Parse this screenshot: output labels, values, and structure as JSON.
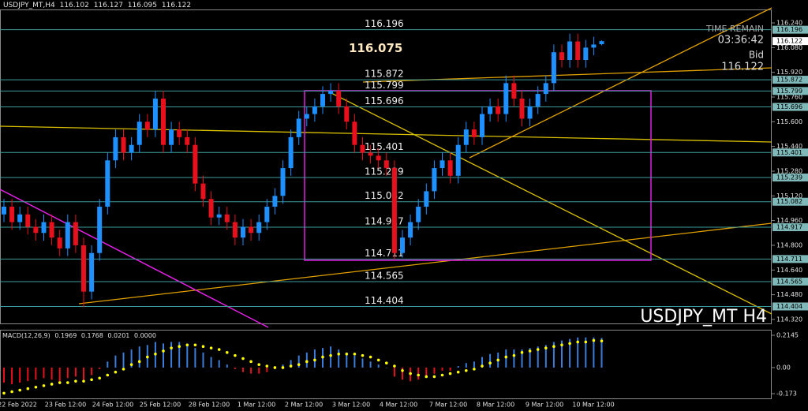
{
  "header": {
    "symbol": "USDJPY_MT,H4"
  },
  "chart_data": [
    {
      "type": "candlestick",
      "open": [
        115.0,
        115.05,
        114.95,
        115.0,
        114.92,
        114.88,
        114.95,
        114.85,
        114.78,
        114.95,
        114.8,
        114.5,
        114.75,
        115.05,
        115.35,
        115.5,
        115.4,
        115.45,
        115.6,
        115.55,
        115.75,
        115.45,
        115.55,
        115.5,
        115.45,
        115.2,
        115.1,
        114.98,
        115.0,
        114.95,
        114.85,
        114.92,
        114.88,
        114.95,
        115.05,
        115.12,
        115.3,
        115.5,
        115.62,
        115.65,
        115.7,
        115.78,
        115.8,
        115.7,
        115.6,
        115.45,
        115.4,
        115.38,
        115.35,
        115.3,
        114.75,
        114.85,
        114.95,
        115.05,
        115.15,
        115.3,
        115.35,
        115.25,
        115.45,
        115.55,
        115.5,
        115.65,
        115.7,
        115.65,
        115.85,
        115.75,
        115.62,
        115.7,
        115.78,
        115.85,
        116.05,
        116.0,
        116.12,
        116.0,
        116.08,
        116.102
      ],
      "high": [
        115.1,
        115.1,
        115.05,
        115.05,
        114.97,
        115.0,
        115.0,
        114.9,
        115.0,
        115.0,
        114.85,
        114.8,
        115.1,
        115.4,
        115.55,
        115.55,
        115.5,
        115.65,
        115.65,
        115.8,
        115.8,
        115.6,
        115.6,
        115.55,
        115.5,
        115.25,
        115.15,
        115.05,
        115.05,
        115.0,
        114.97,
        114.97,
        115.0,
        115.1,
        115.17,
        115.35,
        115.55,
        115.67,
        115.7,
        115.75,
        115.83,
        115.85,
        115.85,
        115.75,
        115.65,
        115.5,
        115.45,
        115.43,
        115.4,
        115.35,
        114.9,
        115.0,
        115.1,
        115.2,
        115.35,
        115.4,
        115.4,
        115.5,
        115.6,
        115.6,
        115.7,
        115.75,
        115.75,
        115.9,
        115.9,
        115.8,
        115.75,
        115.83,
        115.9,
        116.1,
        116.1,
        116.17,
        116.17,
        116.13,
        116.15,
        116.127
      ],
      "low": [
        114.95,
        114.9,
        114.9,
        114.87,
        114.83,
        114.83,
        114.8,
        114.73,
        114.73,
        114.75,
        114.4,
        114.45,
        114.7,
        115.0,
        115.3,
        115.35,
        115.35,
        115.4,
        115.5,
        115.5,
        115.4,
        115.4,
        115.45,
        115.4,
        115.15,
        115.05,
        114.93,
        114.93,
        114.9,
        114.8,
        114.8,
        114.83,
        114.83,
        114.9,
        115.0,
        115.07,
        115.25,
        115.45,
        115.57,
        115.6,
        115.65,
        115.73,
        115.65,
        115.55,
        115.4,
        115.35,
        115.33,
        115.3,
        115.25,
        114.71,
        114.72,
        114.8,
        114.9,
        115.0,
        115.1,
        115.25,
        115.2,
        115.2,
        115.4,
        115.45,
        115.45,
        115.6,
        115.6,
        115.6,
        115.7,
        115.57,
        115.57,
        115.65,
        115.73,
        115.8,
        115.95,
        115.95,
        115.95,
        115.95,
        116.03,
        116.095
      ],
      "close": [
        115.05,
        114.95,
        115.0,
        114.92,
        114.88,
        114.95,
        114.85,
        114.78,
        114.95,
        114.8,
        114.5,
        114.75,
        115.05,
        115.35,
        115.5,
        115.4,
        115.45,
        115.6,
        115.55,
        115.75,
        115.45,
        115.55,
        115.5,
        115.45,
        115.2,
        115.1,
        114.98,
        115.0,
        114.95,
        114.85,
        114.92,
        114.88,
        114.95,
        115.05,
        115.12,
        115.3,
        115.5,
        115.62,
        115.65,
        115.7,
        115.78,
        115.8,
        115.7,
        115.6,
        115.45,
        115.4,
        115.38,
        115.35,
        115.3,
        114.75,
        114.85,
        114.95,
        115.05,
        115.15,
        115.3,
        115.35,
        115.25,
        115.45,
        115.55,
        115.5,
        115.65,
        115.7,
        115.65,
        115.85,
        115.75,
        115.62,
        115.7,
        115.78,
        115.85,
        116.05,
        116.0,
        116.12,
        116.0,
        116.08,
        116.1,
        116.122
      ],
      "up_color": "#1e90ff",
      "down_color": "#e8101c",
      "ylim": [
        114.294,
        116.327
      ],
      "yticks": [
        {
          "value": 116.24,
          "label": "116.240"
        },
        {
          "value": 116.08,
          "label": "116.080"
        },
        {
          "value": 115.92,
          "label": "115.920"
        },
        {
          "value": 115.76,
          "label": "115.760"
        },
        {
          "value": 115.6,
          "label": "115.600"
        },
        {
          "value": 115.44,
          "label": "115.440"
        },
        {
          "value": 115.28,
          "label": "115.280"
        },
        {
          "value": 115.12,
          "label": "115.120"
        },
        {
          "value": 114.96,
          "label": "114.960"
        },
        {
          "value": 114.8,
          "label": "114.800"
        },
        {
          "value": 114.64,
          "label": "114.640"
        },
        {
          "value": 114.48,
          "label": "114.480"
        },
        {
          "value": 114.32,
          "label": "114.320"
        }
      ],
      "levels": [
        116.196,
        115.872,
        115.799,
        115.696,
        115.401,
        115.239,
        115.082,
        114.917,
        114.711,
        114.565,
        114.404
      ],
      "level_color": "#3e9c9c",
      "bold_level": 116.075,
      "x_labels": [
        "22 Feb 2022",
        "23 Feb 12:00",
        "24 Feb 12:00",
        "25 Feb 12:00",
        "28 Feb 12:00",
        "1 Mar 12:00",
        "2 Mar 12:00",
        "3 Mar 12:00",
        "4 Mar 12:00",
        "7 Mar 12:00",
        "8 Mar 12:00",
        "9 Mar 12:00",
        "10 Mar 12:00"
      ],
      "watermark": "USDJPY_MT H4",
      "time_remain_label": "TIME REMAIN",
      "time_remain": "03:36:42",
      "bid_label": "Bid"
    },
    {
      "type": "macd",
      "title": "MACD(12,26,9)",
      "macd": [
        -0.1,
        -0.11,
        -0.1,
        -0.09,
        -0.08,
        -0.07,
        -0.08,
        -0.09,
        -0.07,
        -0.06,
        -0.08,
        -0.05,
        -0.01,
        0.04,
        0.08,
        0.1,
        0.12,
        0.14,
        0.15,
        0.17,
        0.16,
        0.17,
        0.17,
        0.16,
        0.13,
        0.1,
        0.07,
        0.05,
        0.02,
        -0.01,
        -0.03,
        -0.04,
        -0.04,
        -0.03,
        -0.01,
        0.02,
        0.05,
        0.08,
        0.1,
        0.12,
        0.13,
        0.14,
        0.12,
        0.1,
        0.08,
        0.06,
        0.04,
        0.02,
        0.0,
        -0.06,
        -0.08,
        -0.09,
        -0.08,
        -0.06,
        -0.04,
        -0.02,
        -0.02,
        0.01,
        0.03,
        0.04,
        0.07,
        0.09,
        0.1,
        0.12,
        0.12,
        0.12,
        0.13,
        0.14,
        0.15,
        0.17,
        0.18,
        0.19,
        0.2,
        0.2,
        0.2,
        0.1969
      ],
      "signal": [
        -0.17,
        -0.16,
        -0.15,
        -0.14,
        -0.13,
        -0.12,
        -0.11,
        -0.1,
        -0.1,
        -0.09,
        -0.09,
        -0.08,
        -0.07,
        -0.05,
        -0.03,
        -0.01,
        0.02,
        0.04,
        0.07,
        0.09,
        0.11,
        0.13,
        0.14,
        0.15,
        0.15,
        0.14,
        0.13,
        0.12,
        0.1,
        0.08,
        0.06,
        0.04,
        0.02,
        0.01,
        0.0,
        0.0,
        0.01,
        0.02,
        0.04,
        0.05,
        0.07,
        0.08,
        0.09,
        0.09,
        0.09,
        0.08,
        0.07,
        0.05,
        0.03,
        0.01,
        -0.02,
        -0.04,
        -0.05,
        -0.06,
        -0.06,
        -0.05,
        -0.04,
        -0.03,
        -0.02,
        -0.01,
        0.01,
        0.03,
        0.05,
        0.07,
        0.08,
        0.1,
        0.11,
        0.12,
        0.13,
        0.14,
        0.15,
        0.16,
        0.17,
        0.17,
        0.18,
        0.1768
      ],
      "header_values": [
        0.0201,
        {
          "value": 0,
          "label": "0.0000"
        }
      ],
      "ylim": [
        -0.2044,
        0.2511
      ],
      "yticks": [
        0.2145,
        {
          "value": 0,
          "label": "0.00"
        },
        -0.173
      ],
      "pos_color": "#3b7dd8",
      "neg_color": "#e8101c",
      "signal_color": "#ffff00"
    }
  ]
}
